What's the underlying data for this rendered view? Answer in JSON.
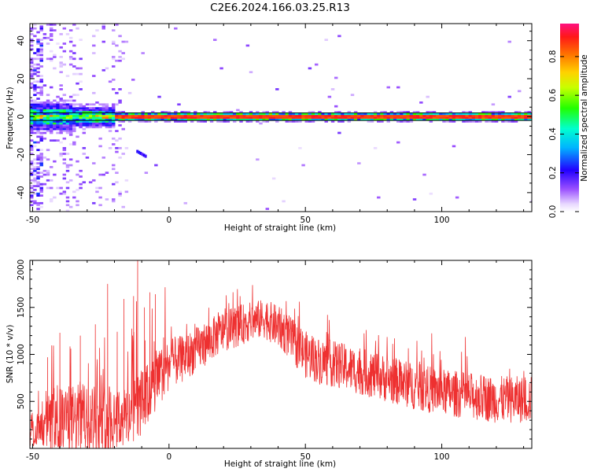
{
  "title": "C2E6.2024.166.03.25.R13",
  "chart_data": [
    {
      "type": "heatmap",
      "xlabel": "Height of straight line (km)",
      "ylabel": "Frequency (Hz)",
      "xlim": [
        -51,
        133
      ],
      "ylim": [
        -50,
        49
      ],
      "x_ticks": [
        -50,
        0,
        50,
        100
      ],
      "y_ticks": [
        -40,
        -20,
        0,
        20,
        40
      ],
      "reference_lines": [
        -2,
        2
      ],
      "colorbar": {
        "label": "Normalized spectral amplitude",
        "range": [
          0,
          0.97
        ],
        "ticks": [
          0.0,
          0.2,
          0.4,
          0.6,
          0.8
        ],
        "colormap": "rainbow"
      }
    },
    {
      "type": "line",
      "xlabel": "Height of straight line (km)",
      "ylabel": "SNR (10 * v/v)",
      "xlim": [
        -51,
        133
      ],
      "ylim": [
        0,
        2000
      ],
      "x_ticks": [
        -50,
        0,
        50,
        100
      ],
      "y_ticks": [
        500,
        1000,
        1500,
        2000
      ],
      "color": "#ee3030",
      "envelope": {
        "x": [
          -51,
          -48,
          -46,
          -44,
          -42,
          -40,
          -38,
          -35,
          -32,
          -29,
          -26,
          -23,
          -20,
          -17,
          -14,
          -11,
          -8,
          -5,
          -2,
          0,
          5,
          10,
          15,
          20,
          25,
          30,
          35,
          38,
          42,
          46,
          50,
          55,
          60,
          70,
          80,
          90,
          100,
          110,
          120,
          133
        ],
        "y": [
          130,
          200,
          210,
          260,
          280,
          280,
          300,
          300,
          320,
          320,
          320,
          330,
          330,
          330,
          400,
          460,
          560,
          680,
          820,
          900,
          950,
          1050,
          1150,
          1250,
          1300,
          1350,
          1380,
          1330,
          1250,
          1120,
          1000,
          930,
          900,
          820,
          740,
          660,
          600,
          560,
          520,
          520
        ],
        "spread": [
          130,
          150,
          180,
          330,
          350,
          360,
          370,
          380,
          370,
          370,
          380,
          380,
          370,
          360,
          370,
          360,
          340,
          320,
          290,
          280,
          250,
          240,
          230,
          220,
          220,
          210,
          210,
          220,
          230,
          240,
          250,
          250,
          250,
          250,
          250,
          250,
          250,
          250,
          250,
          250
        ]
      },
      "spikes": [
        {
          "x": -44.5,
          "y": 970
        },
        {
          "x": -40.0,
          "y": 1230
        },
        {
          "x": -36.0,
          "y": 1060
        },
        {
          "x": -32.5,
          "y": 1200
        },
        {
          "x": -27.0,
          "y": 1320
        },
        {
          "x": -22.5,
          "y": 1750
        },
        {
          "x": -19.0,
          "y": 1240
        },
        {
          "x": -16.5,
          "y": 1590
        },
        {
          "x": -13.0,
          "y": 1620
        },
        {
          "x": -11.5,
          "y": 2000
        },
        {
          "x": -9.0,
          "y": 1500
        },
        {
          "x": -7.0,
          "y": 1660
        },
        {
          "x": -5.0,
          "y": 1640
        },
        {
          "x": -2.0,
          "y": 1180
        }
      ]
    }
  ]
}
